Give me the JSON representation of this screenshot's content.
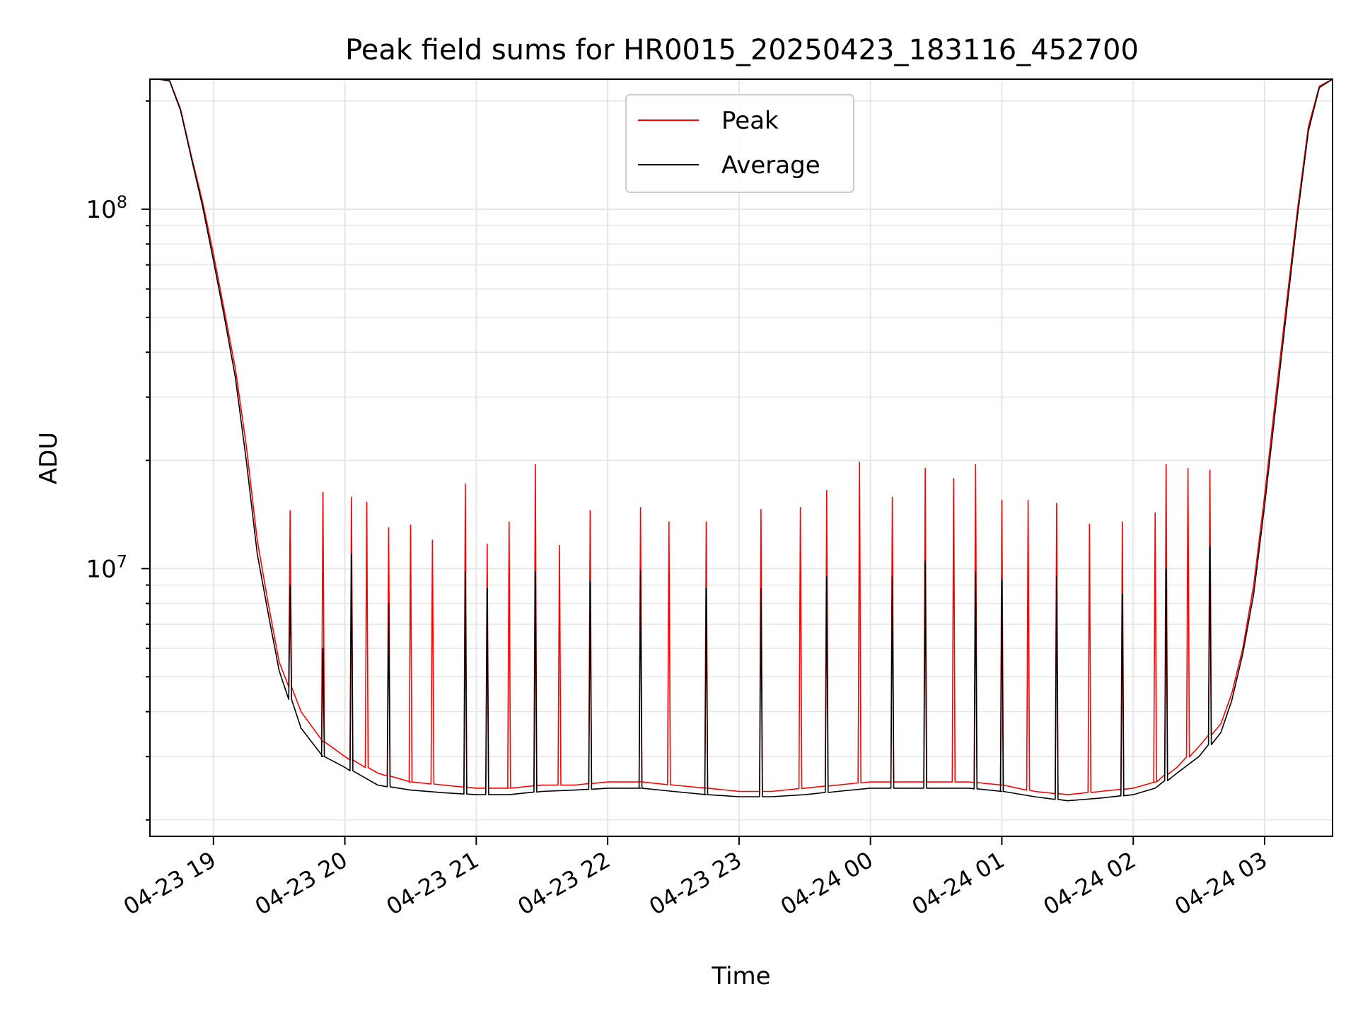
{
  "chart_data": {
    "type": "line",
    "title": "Peak field sums for HR0015_20250423_183116_452700",
    "xlabel": "Time",
    "ylabel": "ADU",
    "yscale": "log",
    "ylim": [
      1800000,
      230000000
    ],
    "xlim": [
      "2025-04-23 18:31",
      "2025-04-24 03:31"
    ],
    "grid": true,
    "legend_position": "top-center",
    "x_ticks": [
      "2025-04-23 19:00",
      "2025-04-23 20:00",
      "2025-04-23 21:00",
      "2025-04-23 22:00",
      "2025-04-23 23:00",
      "2025-04-24 00:00",
      "2025-04-24 01:00",
      "2025-04-24 02:00",
      "2025-04-24 03:00"
    ],
    "x_tick_labels": [
      "04-23 19",
      "04-23 20",
      "04-23 21",
      "04-23 22",
      "04-23 23",
      "04-24 00",
      "04-24 01",
      "04-24 02",
      "04-24 03"
    ],
    "y_tick_labels": [
      {
        "value": 10000000,
        "base": "10",
        "exp": "7"
      },
      {
        "value": 100000000,
        "base": "10",
        "exp": "8"
      }
    ],
    "x": [
      "2025-04-23 18:31",
      "2025-04-23 18:35",
      "2025-04-23 18:40",
      "2025-04-23 18:45",
      "2025-04-23 18:50",
      "2025-04-23 18:55",
      "2025-04-23 19:00",
      "2025-04-23 19:05",
      "2025-04-23 19:10",
      "2025-04-23 19:15",
      "2025-04-23 19:20",
      "2025-04-23 19:25",
      "2025-04-23 19:30",
      "2025-04-23 19:40",
      "2025-04-23 19:50",
      "2025-04-23 20:00",
      "2025-04-23 20:15",
      "2025-04-23 20:30",
      "2025-04-23 20:45",
      "2025-04-23 21:00",
      "2025-04-23 21:15",
      "2025-04-23 21:30",
      "2025-04-23 21:45",
      "2025-04-23 22:00",
      "2025-04-23 22:15",
      "2025-04-23 22:30",
      "2025-04-23 22:45",
      "2025-04-23 23:00",
      "2025-04-23 23:15",
      "2025-04-23 23:30",
      "2025-04-23 23:45",
      "2025-04-24 00:00",
      "2025-04-24 00:15",
      "2025-04-24 00:30",
      "2025-04-24 00:45",
      "2025-04-24 01:00",
      "2025-04-24 01:15",
      "2025-04-24 01:30",
      "2025-04-24 01:45",
      "2025-04-24 02:00",
      "2025-04-24 02:10",
      "2025-04-24 02:20",
      "2025-04-24 02:30",
      "2025-04-24 02:40",
      "2025-04-24 02:45",
      "2025-04-24 02:50",
      "2025-04-24 02:55",
      "2025-04-24 03:00",
      "2025-04-24 03:05",
      "2025-04-24 03:10",
      "2025-04-24 03:15",
      "2025-04-24 03:20",
      "2025-04-24 03:25",
      "2025-04-24 03:31"
    ],
    "series": [
      {
        "name": "Peak",
        "color": "#ff0000",
        "values": [
          230000000,
          230000000,
          228000000,
          190000000,
          140000000,
          105000000,
          75000000,
          52000000,
          36000000,
          22000000,
          12000000,
          8000000,
          5500000,
          4000000,
          3300000,
          3000000,
          2700000,
          2550000,
          2500000,
          2450000,
          2450000,
          2500000,
          2500000,
          2550000,
          2550000,
          2500000,
          2450000,
          2400000,
          2400000,
          2450000,
          2500000,
          2550000,
          2550000,
          2550000,
          2550000,
          2500000,
          2400000,
          2350000,
          2400000,
          2450000,
          2550000,
          2800000,
          3200000,
          3700000,
          4500000,
          6000000,
          9000000,
          16000000,
          30000000,
          55000000,
          100000000,
          170000000,
          220000000,
          230000000
        ],
        "spikes": [
          {
            "x": "2025-04-23 19:35",
            "value": 14500000
          },
          {
            "x": "2025-04-23 19:50",
            "value": 16300000
          },
          {
            "x": "2025-04-23 20:03",
            "value": 15800000
          },
          {
            "x": "2025-04-23 20:10",
            "value": 15300000
          },
          {
            "x": "2025-04-23 20:20",
            "value": 13000000
          },
          {
            "x": "2025-04-23 20:30",
            "value": 13200000
          },
          {
            "x": "2025-04-23 20:40",
            "value": 12000000
          },
          {
            "x": "2025-04-23 20:55",
            "value": 17200000
          },
          {
            "x": "2025-04-23 21:05",
            "value": 11700000
          },
          {
            "x": "2025-04-23 21:15",
            "value": 13500000
          },
          {
            "x": "2025-04-23 21:27",
            "value": 19500000
          },
          {
            "x": "2025-04-23 21:38",
            "value": 11600000
          },
          {
            "x": "2025-04-23 21:52",
            "value": 14500000
          },
          {
            "x": "2025-04-23 22:15",
            "value": 14800000
          },
          {
            "x": "2025-04-23 22:28",
            "value": 13500000
          },
          {
            "x": "2025-04-23 22:45",
            "value": 13500000
          },
          {
            "x": "2025-04-23 23:10",
            "value": 14600000
          },
          {
            "x": "2025-04-23 23:28",
            "value": 14800000
          },
          {
            "x": "2025-04-23 23:40",
            "value": 16500000
          },
          {
            "x": "2025-04-23 23:55",
            "value": 19800000
          },
          {
            "x": "2025-04-24 00:10",
            "value": 15800000
          },
          {
            "x": "2025-04-24 00:25",
            "value": 19000000
          },
          {
            "x": "2025-04-24 00:38",
            "value": 17800000
          },
          {
            "x": "2025-04-24 00:48",
            "value": 19500000
          },
          {
            "x": "2025-04-24 01:00",
            "value": 15500000
          },
          {
            "x": "2025-04-24 01:12",
            "value": 15500000
          },
          {
            "x": "2025-04-24 01:25",
            "value": 15200000
          },
          {
            "x": "2025-04-24 01:40",
            "value": 13300000
          },
          {
            "x": "2025-04-24 01:55",
            "value": 13500000
          },
          {
            "x": "2025-04-24 02:10",
            "value": 14300000
          },
          {
            "x": "2025-04-24 02:15",
            "value": 19500000
          },
          {
            "x": "2025-04-24 02:25",
            "value": 19000000
          },
          {
            "x": "2025-04-24 02:35",
            "value": 18800000
          }
        ]
      },
      {
        "name": "Average",
        "color": "#000000",
        "values": [
          230000000,
          230000000,
          227000000,
          188000000,
          138000000,
          102000000,
          72000000,
          50000000,
          34000000,
          20000000,
          11000000,
          7500000,
          5200000,
          3600000,
          3000000,
          2800000,
          2500000,
          2420000,
          2380000,
          2350000,
          2350000,
          2400000,
          2420000,
          2450000,
          2450000,
          2400000,
          2350000,
          2320000,
          2320000,
          2350000,
          2400000,
          2450000,
          2450000,
          2450000,
          2450000,
          2400000,
          2320000,
          2260000,
          2300000,
          2350000,
          2450000,
          2700000,
          3000000,
          3500000,
          4300000,
          5800000,
          8500000,
          15000000,
          28000000,
          52000000,
          96000000,
          165000000,
          218000000,
          230000000
        ],
        "spikes": [
          {
            "x": "2025-04-23 19:35",
            "value": 9000000
          },
          {
            "x": "2025-04-23 19:50",
            "value": 6000000
          },
          {
            "x": "2025-04-23 20:03",
            "value": 11000000
          },
          {
            "x": "2025-04-23 20:20",
            "value": 8000000
          },
          {
            "x": "2025-04-23 20:55",
            "value": 9800000
          },
          {
            "x": "2025-04-23 21:05",
            "value": 8800000
          },
          {
            "x": "2025-04-23 21:27",
            "value": 9800000
          },
          {
            "x": "2025-04-23 21:52",
            "value": 9200000
          },
          {
            "x": "2025-04-23 22:15",
            "value": 9900000
          },
          {
            "x": "2025-04-23 22:45",
            "value": 8800000
          },
          {
            "x": "2025-04-23 23:10",
            "value": 8800000
          },
          {
            "x": "2025-04-23 23:40",
            "value": 9500000
          },
          {
            "x": "2025-04-24 00:10",
            "value": 9500000
          },
          {
            "x": "2025-04-24 00:25",
            "value": 10500000
          },
          {
            "x": "2025-04-24 00:48",
            "value": 9800000
          },
          {
            "x": "2025-04-24 01:00",
            "value": 9300000
          },
          {
            "x": "2025-04-24 01:25",
            "value": 9500000
          },
          {
            "x": "2025-04-24 01:55",
            "value": 8500000
          },
          {
            "x": "2025-04-24 02:15",
            "value": 10000000
          },
          {
            "x": "2025-04-24 02:35",
            "value": 11500000
          }
        ]
      }
    ]
  }
}
